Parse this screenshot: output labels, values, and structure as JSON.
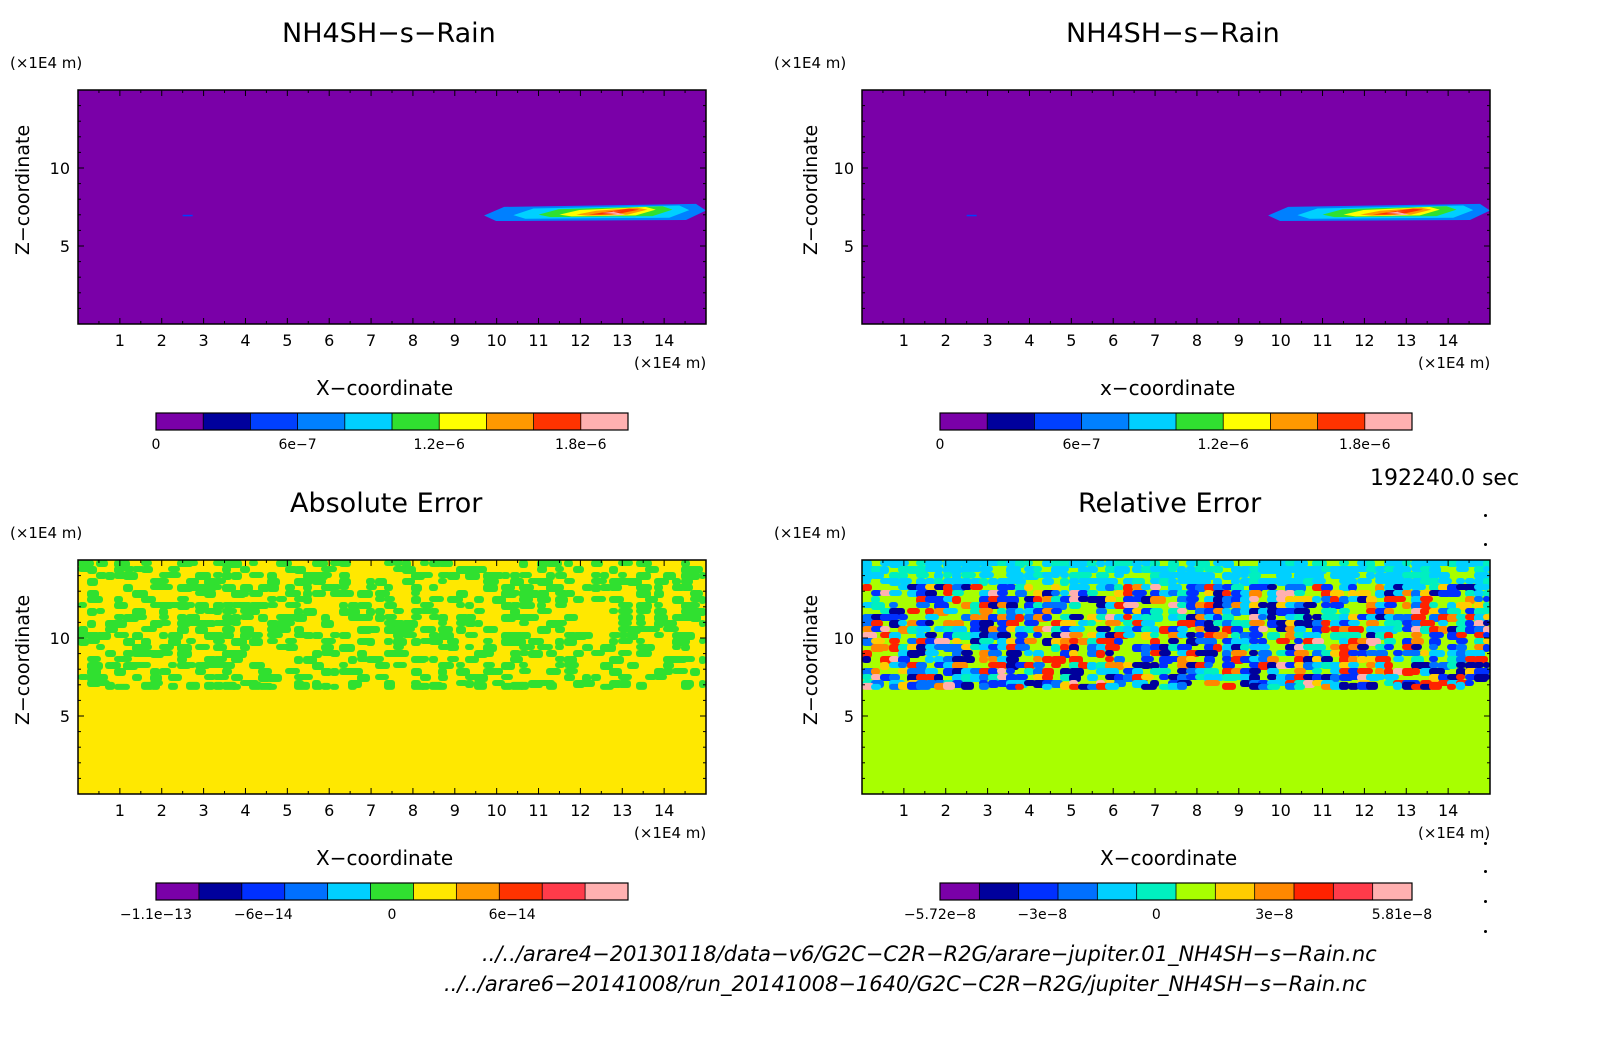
{
  "panels": [
    {
      "title": "NH4SH−s−Rain",
      "ylabel": "Z−coordinate",
      "xlabel": "X−coordinate",
      "unit_y": "(×1E4 m)",
      "unit_x": "(×1E4 m)",
      "x_ticks": [
        "1",
        "2",
        "3",
        "4",
        "5",
        "6",
        "7",
        "8",
        "9",
        "10",
        "11",
        "12",
        "13",
        "14"
      ],
      "y_ticks": [
        "5",
        "10"
      ],
      "colorbar": {
        "colors": [
          "#7a00a8",
          "#00009c",
          "#0040ff",
          "#0080ff",
          "#00d0ff",
          "#30e030",
          "#ffff00",
          "#ff9900",
          "#ff3300",
          "#ffb0b0"
        ],
        "tick_labels": [
          "0",
          "6e−7",
          "1.2e−6",
          "1.8e−6"
        ]
      }
    },
    {
      "title": "NH4SH−s−Rain",
      "ylabel": "Z−coordinate",
      "xlabel": "x−coordinate",
      "unit_y": "(×1E4 m)",
      "unit_x": "(×1E4 m)",
      "x_ticks": [
        "1",
        "2",
        "3",
        "4",
        "5",
        "6",
        "7",
        "8",
        "9",
        "10",
        "11",
        "12",
        "13",
        "14"
      ],
      "y_ticks": [
        "5",
        "10"
      ],
      "colorbar": {
        "colors": [
          "#7a00a8",
          "#00009c",
          "#0040ff",
          "#0080ff",
          "#00d0ff",
          "#30e030",
          "#ffff00",
          "#ff9900",
          "#ff3300",
          "#ffb0b0"
        ],
        "tick_labels": [
          "0",
          "6e−7",
          "1.2e−6",
          "1.8e−6"
        ]
      }
    },
    {
      "title": "Absolute Error",
      "ylabel": "Z−coordinate",
      "xlabel": "X−coordinate",
      "unit_y": "(×1E4 m)",
      "unit_x": "(×1E4 m)",
      "x_ticks": [
        "1",
        "2",
        "3",
        "4",
        "5",
        "6",
        "7",
        "8",
        "9",
        "10",
        "11",
        "12",
        "13",
        "14"
      ],
      "y_ticks": [
        "5",
        "10"
      ],
      "colorbar": {
        "colors": [
          "#7a00a8",
          "#00009c",
          "#0030ff",
          "#0070ff",
          "#00d0ff",
          "#30e030",
          "#ffe800",
          "#ff9900",
          "#ff3300",
          "#ff3b4a",
          "#ffb0b0"
        ],
        "tick_labels": [
          "−1.1e−13",
          "−6e−14",
          "0",
          "6e−14"
        ]
      }
    },
    {
      "title": "Relative Error",
      "ylabel": "Z−coordinate",
      "xlabel": "X−coordinate",
      "unit_y": "(×1E4 m)",
      "unit_x": "(×1E4 m)",
      "x_ticks": [
        "1",
        "2",
        "3",
        "4",
        "5",
        "6",
        "7",
        "8",
        "9",
        "10",
        "11",
        "12",
        "13",
        "14"
      ],
      "y_ticks": [
        "5",
        "10"
      ],
      "colorbar": {
        "colors": [
          "#7a00a8",
          "#00009c",
          "#0030ff",
          "#0070ff",
          "#00d0ff",
          "#00f0c0",
          "#a8ff00",
          "#ffcc00",
          "#ff8800",
          "#ff2200",
          "#ff3b4a",
          "#ffb0b0"
        ],
        "tick_labels": [
          "−5.72e−8",
          "−3e−8",
          "0",
          "3e−8",
          "5.81e−8"
        ]
      }
    }
  ],
  "time_label": "192240.0 sec",
  "file_paths": [
    "../../arare4−20130118/data−v6/G2C−C2R−R2G/arare−jupiter.01_NH4SH−s−Rain.nc",
    "../../arare6−20141008/run_20141008−1640/G2C−C2R−R2G/jupiter_NH4SH−s−Rain.nc"
  ],
  "chart_data": [
    {
      "type": "heatmap",
      "title": "NH4SH−s−Rain",
      "xlabel": "X−coordinate",
      "ylabel": "Z−coordinate",
      "x_unit": "(×1E4 m)",
      "y_unit": "(×1E4 m)",
      "xlim": [
        0,
        15
      ],
      "ylim": [
        0,
        15
      ],
      "colorbar_range": [
        0,
        2.1e-06
      ],
      "background_value": 0,
      "feature": {
        "x_range": [
          9.7,
          15
        ],
        "z_range": [
          6.6,
          7.7
        ],
        "peak_value": 2.1e-06,
        "peak_x": 12.8,
        "peak_z": 7.1
      }
    },
    {
      "type": "heatmap",
      "title": "NH4SH−s−Rain",
      "xlabel": "x−coordinate",
      "ylabel": "Z−coordinate",
      "x_unit": "(×1E4 m)",
      "y_unit": "(×1E4 m)",
      "xlim": [
        0,
        15
      ],
      "ylim": [
        0,
        15
      ],
      "colorbar_range": [
        0,
        2.1e-06
      ],
      "background_value": 0,
      "feature": {
        "x_range": [
          9.7,
          15
        ],
        "z_range": [
          6.6,
          7.7
        ],
        "peak_value": 2.1e-06,
        "peak_x": 12.8,
        "peak_z": 7.1
      }
    },
    {
      "type": "heatmap",
      "title": "Absolute Error",
      "xlabel": "X−coordinate",
      "ylabel": "Z−coordinate",
      "x_unit": "(×1E4 m)",
      "y_unit": "(×1E4 m)",
      "xlim": [
        0,
        15
      ],
      "ylim": [
        0,
        15
      ],
      "colorbar_range": [
        -1.1e-13,
        1.1e-13
      ],
      "lower_region": {
        "z_range": [
          0,
          6.8
        ],
        "value": 0
      },
      "upper_region": {
        "z_range": [
          6.8,
          15
        ],
        "values": "noisy mix of 0 and small negative (~−1e−14)"
      }
    },
    {
      "type": "heatmap",
      "title": "Relative Error",
      "xlabel": "X−coordinate",
      "ylabel": "Z−coordinate",
      "x_unit": "(×1E4 m)",
      "y_unit": "(×1E4 m)",
      "xlim": [
        0,
        15
      ],
      "ylim": [
        0,
        15
      ],
      "colorbar_range": [
        -5.72e-08,
        5.81e-08
      ],
      "lower_region": {
        "z_range": [
          0,
          6.8
        ],
        "value": 0
      },
      "upper_region": {
        "z_range": [
          6.8,
          15
        ],
        "values": "noisy, spanning full colorbar range"
      }
    }
  ]
}
